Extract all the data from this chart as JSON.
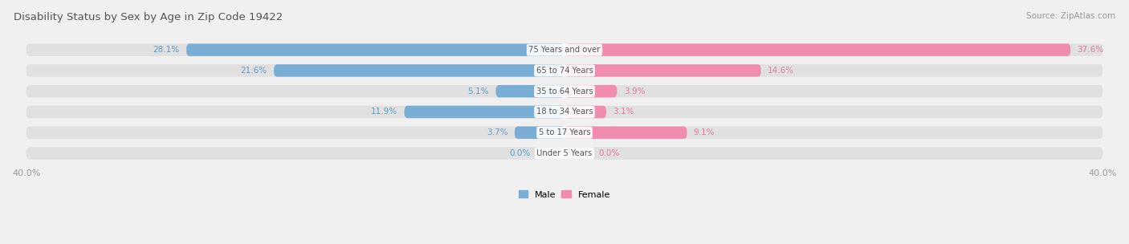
{
  "title": "Disability Status by Sex by Age in Zip Code 19422",
  "source": "Source: ZipAtlas.com",
  "categories": [
    "Under 5 Years",
    "5 to 17 Years",
    "18 to 34 Years",
    "35 to 64 Years",
    "65 to 74 Years",
    "75 Years and over"
  ],
  "male_values": [
    0.0,
    3.7,
    11.9,
    5.1,
    21.6,
    28.1
  ],
  "female_values": [
    0.0,
    9.1,
    3.1,
    3.9,
    14.6,
    37.6
  ],
  "male_color": "#7aadd4",
  "female_color": "#f08cb0",
  "male_label": "Male",
  "female_label": "Female",
  "axis_max": 40.0,
  "background_color": "#f0f0f0",
  "bar_bg_color": "#e0e0e0",
  "title_color": "#555555",
  "cat_label_color": "#555555",
  "axis_label_color": "#999999",
  "male_text_color": "#5a9dc8",
  "female_text_color": "#e07aa0"
}
